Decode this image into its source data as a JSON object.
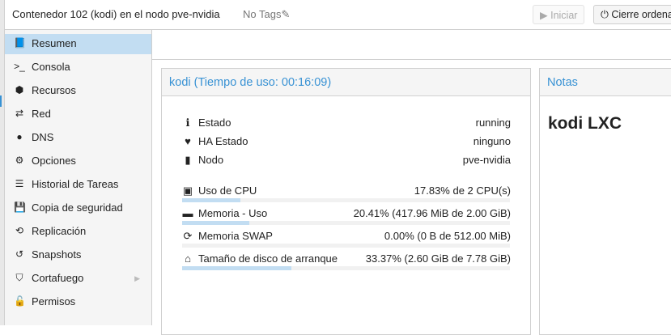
{
  "header": {
    "title": "Contenedor 102 (kodi) en el nodo pve-nvidia",
    "tags": "No Tags",
    "start_label": "Iniciar",
    "shutdown_label": "Cierre ordena"
  },
  "sidebar": {
    "items": [
      {
        "label": "Resumen",
        "icon": "book-icon",
        "selected": true
      },
      {
        "label": "Consola",
        "icon": "terminal-icon"
      },
      {
        "label": "Recursos",
        "icon": "cube-icon"
      },
      {
        "label": "Red",
        "icon": "exchange-icon"
      },
      {
        "label": "DNS",
        "icon": "globe-icon"
      },
      {
        "label": "Opciones",
        "icon": "gear-icon"
      },
      {
        "label": "Historial de Tareas",
        "icon": "list-icon"
      },
      {
        "label": "Copia de seguridad",
        "icon": "floppy-icon"
      },
      {
        "label": "Replicación",
        "icon": "retweet-icon"
      },
      {
        "label": "Snapshots",
        "icon": "history-icon"
      },
      {
        "label": "Cortafuego",
        "icon": "shield-icon"
      },
      {
        "label": "Permisos",
        "icon": "unlock-icon"
      }
    ]
  },
  "summary": {
    "title": "kodi (Tiempo de uso: 00:16:09)",
    "status": [
      {
        "label": "Estado",
        "value": "running"
      },
      {
        "label": "HA Estado",
        "value": "ninguno"
      },
      {
        "label": "Nodo",
        "value": "pve-nvidia"
      }
    ],
    "usage": [
      {
        "label": "Uso de CPU",
        "value": "17.83% de 2 CPU(s)",
        "percent": 17.83
      },
      {
        "label": "Memoria - Uso",
        "value": "20.41% (417.96 MiB de 2.00 GiB)",
        "percent": 20.41
      },
      {
        "label": "Memoria SWAP",
        "value": "0.00% (0 B de 512.00 MiB)",
        "percent": 0
      },
      {
        "label": "Tamaño de disco de arranque",
        "value": "33.37% (2.60 GiB de 7.78 GiB)",
        "percent": 33.37
      }
    ]
  },
  "notes": {
    "title": "Notas",
    "content": "kodi LXC"
  }
}
